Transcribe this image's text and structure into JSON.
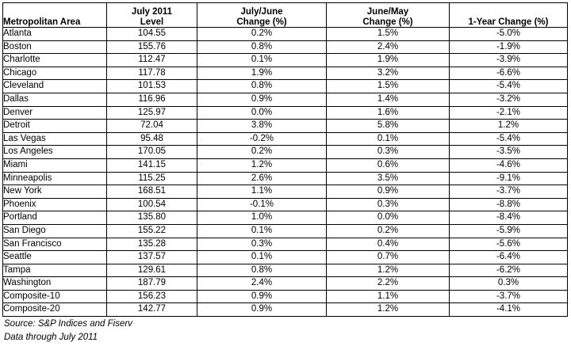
{
  "table": {
    "headers": [
      [
        "Metropolitan Area"
      ],
      [
        "July 2011",
        "Level"
      ],
      [
        "July/June",
        "Change (%)"
      ],
      [
        "June/May",
        "Change (%)"
      ],
      [
        "1-Year Change (%)"
      ]
    ],
    "rows": [
      [
        "Atlanta",
        "104.55",
        "0.2%",
        "1.5%",
        "-5.0%"
      ],
      [
        "Boston",
        "155.76",
        "0.8%",
        "2.4%",
        "-1.9%"
      ],
      [
        "Charlotte",
        "112.47",
        "0.1%",
        "1.9%",
        "-3.9%"
      ],
      [
        "Chicago",
        "117.78",
        "1.9%",
        "3.2%",
        "-6.6%"
      ],
      [
        "Cleveland",
        "101.53",
        "0.8%",
        "1.5%",
        "-5.4%"
      ],
      [
        "Dallas",
        "116.96",
        "0.9%",
        "1.4%",
        "-3.2%"
      ],
      [
        "Denver",
        "125.97",
        "0.0%",
        "1.6%",
        "-2.1%"
      ],
      [
        "Detroit",
        "72.04",
        "3.8%",
        "5.8%",
        "1.2%"
      ],
      [
        "Las Vegas",
        "95.48",
        "-0.2%",
        "0.1%",
        "-5.4%"
      ],
      [
        "Los Angeles",
        "170.05",
        "0.2%",
        "0.3%",
        "-3.5%"
      ],
      [
        "Miami",
        "141.15",
        "1.2%",
        "0.6%",
        "-4.6%"
      ],
      [
        "Minneapolis",
        "115.25",
        "2.6%",
        "3.5%",
        "-9.1%"
      ],
      [
        "New York",
        "168.51",
        "1.1%",
        "0.9%",
        "-3.7%"
      ],
      [
        "Phoenix",
        "100.54",
        "-0.1%",
        "0.3%",
        "-8.8%"
      ],
      [
        "Portland",
        "135.80",
        "1.0%",
        "0.0%",
        "-8.4%"
      ],
      [
        "San Diego",
        "155.22",
        "0.1%",
        "0.2%",
        "-5.9%"
      ],
      [
        "San Francisco",
        "135.28",
        "0.3%",
        "0.4%",
        "-5.6%"
      ],
      [
        "Seattle",
        "137.57",
        "0.1%",
        "0.7%",
        "-6.4%"
      ],
      [
        "Tampa",
        "129.61",
        "0.8%",
        "1.2%",
        "-6.2%"
      ],
      [
        "Washington",
        "187.79",
        "2.4%",
        "2.2%",
        "0.3%"
      ],
      [
        "Composite-10",
        "156.23",
        "0.9%",
        "1.1%",
        "-3.7%"
      ],
      [
        "Composite-20",
        "142.77",
        "0.9%",
        "1.2%",
        "-4.1%"
      ]
    ]
  },
  "footnotes": {
    "source": "Source: S&P Indices and Fiserv",
    "data_through": "Data through July 2011"
  }
}
